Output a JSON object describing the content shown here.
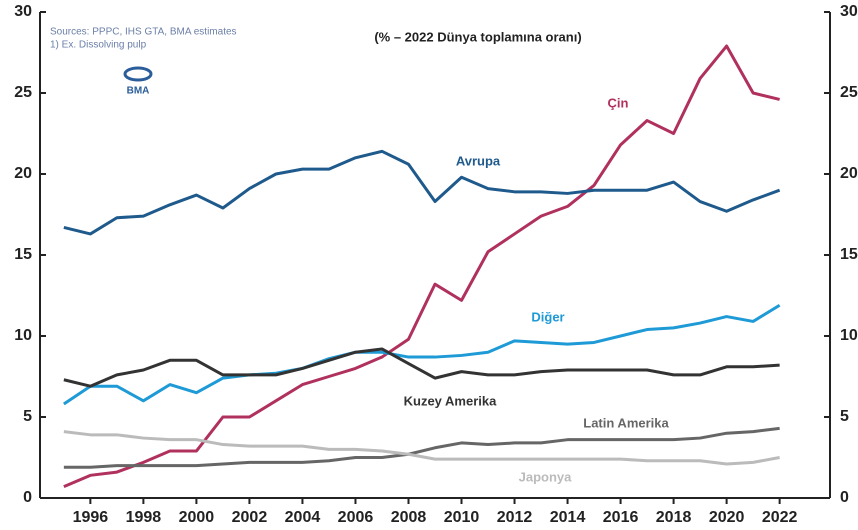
{
  "chart_data": {
    "type": "line",
    "title": "(% – 2022 Dünya toplamına oranı)",
    "source": [
      "Sources: PPPC, IHS GTA, BMA estimates",
      "1) Ex. Dissolving pulp"
    ],
    "logo": "BMA",
    "x": [
      1995,
      1996,
      1997,
      1998,
      1999,
      2000,
      2001,
      2002,
      2003,
      2004,
      2005,
      2006,
      2007,
      2008,
      2009,
      2010,
      2011,
      2012,
      2013,
      2014,
      2015,
      2016,
      2017,
      2018,
      2019,
      2020,
      2021,
      2022
    ],
    "series": [
      {
        "name": "Çin",
        "color": "#b0305e",
        "values": [
          0.7,
          1.4,
          1.6,
          2.2,
          2.9,
          2.9,
          5.0,
          5.0,
          6.0,
          7.0,
          7.5,
          8.0,
          8.7,
          9.8,
          13.2,
          12.2,
          15.2,
          16.3,
          17.4,
          18.0,
          19.3,
          21.8,
          23.3,
          22.5,
          25.9,
          27.9,
          25.0,
          24.6
        ]
      },
      {
        "name": "Avrupa",
        "color": "#1f5a8c",
        "values": [
          16.7,
          16.3,
          17.3,
          17.4,
          18.1,
          18.7,
          17.9,
          19.1,
          20.0,
          20.3,
          20.3,
          21.0,
          21.4,
          20.6,
          18.3,
          19.8,
          19.1,
          18.9,
          18.9,
          18.8,
          19.0,
          19.0,
          19.0,
          19.5,
          18.3,
          17.7,
          18.4,
          19.0
        ]
      },
      {
        "name": "Diğer",
        "color": "#1e9ad6",
        "values": [
          5.8,
          6.9,
          6.9,
          6.0,
          7.0,
          6.5,
          7.4,
          7.6,
          7.7,
          8.0,
          8.6,
          9.0,
          9.0,
          8.7,
          8.7,
          8.8,
          9.0,
          9.7,
          9.6,
          9.5,
          9.6,
          10.0,
          10.4,
          10.5,
          10.8,
          11.2,
          10.9,
          11.9
        ]
      },
      {
        "name": "Kuzey Amerika",
        "color": "#333333",
        "values": [
          7.3,
          6.9,
          7.6,
          7.9,
          8.5,
          8.5,
          7.6,
          7.6,
          7.6,
          8.0,
          8.5,
          9.0,
          9.2,
          8.3,
          7.4,
          7.8,
          7.6,
          7.6,
          7.8,
          7.9,
          7.9,
          7.9,
          7.9,
          7.6,
          7.6,
          8.1,
          8.1,
          8.2
        ]
      },
      {
        "name": "Latin Amerika",
        "color": "#666666",
        "values": [
          1.9,
          1.9,
          2.0,
          2.0,
          2.0,
          2.0,
          2.1,
          2.2,
          2.2,
          2.2,
          2.3,
          2.5,
          2.5,
          2.7,
          3.1,
          3.4,
          3.3,
          3.4,
          3.4,
          3.6,
          3.6,
          3.6,
          3.6,
          3.6,
          3.7,
          4.0,
          4.1,
          4.3
        ]
      },
      {
        "name": "Japonya",
        "color": "#bbbbbb",
        "values": [
          4.1,
          3.9,
          3.9,
          3.7,
          3.6,
          3.6,
          3.3,
          3.2,
          3.2,
          3.2,
          3.0,
          3.0,
          2.9,
          2.7,
          2.4,
          2.4,
          2.4,
          2.4,
          2.4,
          2.4,
          2.4,
          2.4,
          2.3,
          2.3,
          2.3,
          2.1,
          2.2,
          2.5
        ]
      }
    ],
    "xlim": [
      1994.1,
      2023.9
    ],
    "xticks": [
      1996,
      1998,
      2000,
      2002,
      2004,
      2006,
      2008,
      2010,
      2012,
      2014,
      2016,
      2018,
      2020,
      2022
    ],
    "ylim": [
      0,
      30
    ],
    "yticks": [
      0,
      5,
      10,
      15,
      20,
      25,
      30
    ],
    "y2lim": [
      0,
      30
    ],
    "y2ticks": [
      0,
      5,
      10,
      15,
      20,
      25,
      30
    ]
  }
}
